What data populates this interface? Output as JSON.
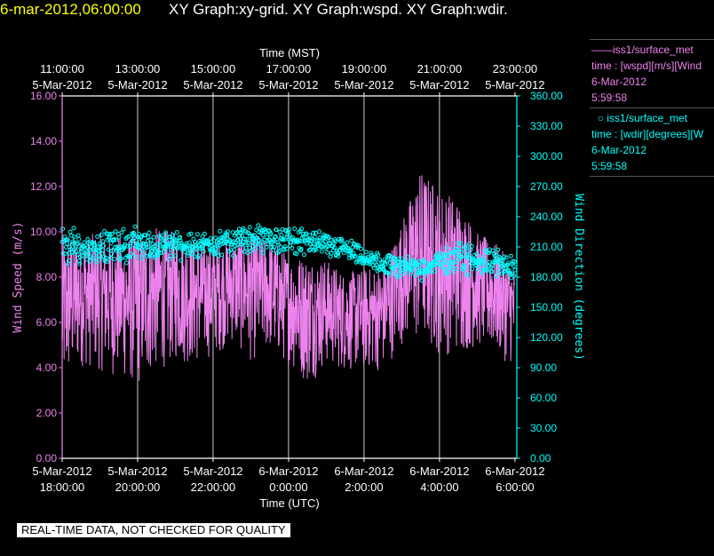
{
  "header": {
    "datetime": "6-mar-2012,06:00:00",
    "titles": "XY Graph:xy-grid.  XY Graph:wspd.  XY Graph:wdir."
  },
  "legend": {
    "series1": {
      "name": "iss1/surface_met",
      "var": "time : [wspd][m/s][Wind",
      "date": "6-Mar-2012",
      "time": "5:59:58"
    },
    "series2": {
      "name": "iss1/surface_met",
      "var": "time : [wdir][degrees][W",
      "date": "6-Mar-2012",
      "time": "5:59:58"
    }
  },
  "warning": "REAL-TIME DATA, NOT CHECKED FOR QUALITY",
  "colors": {
    "wspd": "#ee82ee",
    "wdir": "#00ffff",
    "date_header": "#ffff00",
    "grid": "#ffffff"
  },
  "chart_data": {
    "type": "line",
    "x_top_label": "Time (MST)",
    "x_bottom_label": "Time (UTC)",
    "ylabel_left": "Wind Speed (m/s)",
    "ylabel_right": "Wind Direction (degrees)",
    "xlim_utc_hours": [
      18,
      30.05
    ],
    "ylim_left": [
      0,
      16
    ],
    "ylim_right": [
      0,
      360
    ],
    "top_ticks": [
      {
        "x": 18,
        "time": "11:00:00",
        "date": "5-Mar-2012"
      },
      {
        "x": 20,
        "time": "13:00:00",
        "date": "5-Mar-2012"
      },
      {
        "x": 22,
        "time": "15:00:00",
        "date": "5-Mar-2012"
      },
      {
        "x": 24,
        "time": "17:00:00",
        "date": "5-Mar-2012"
      },
      {
        "x": 26,
        "time": "19:00:00",
        "date": "5-Mar-2012"
      },
      {
        "x": 28,
        "time": "21:00:00",
        "date": "5-Mar-2012"
      },
      {
        "x": 30,
        "time": "23:00:00",
        "date": "5-Mar-2012"
      }
    ],
    "bottom_ticks": [
      {
        "x": 18,
        "date": "5-Mar-2012",
        "time": "18:00:00"
      },
      {
        "x": 20,
        "date": "5-Mar-2012",
        "time": "20:00:00"
      },
      {
        "x": 22,
        "date": "5-Mar-2012",
        "time": "22:00:00"
      },
      {
        "x": 24,
        "date": "6-Mar-2012",
        "time": "0:00:00"
      },
      {
        "x": 26,
        "date": "6-Mar-2012",
        "time": "2:00:00"
      },
      {
        "x": 28,
        "date": "6-Mar-2012",
        "time": "4:00:00"
      },
      {
        "x": 30,
        "date": "6-Mar-2012",
        "time": "6:00:00"
      }
    ],
    "left_ticks": [
      "0.00",
      "2.00",
      "4.00",
      "6.00",
      "8.00",
      "10.00",
      "12.00",
      "14.00",
      "16.00"
    ],
    "right_ticks": [
      "0.00",
      "30.00",
      "60.00",
      "90.00",
      "120.00",
      "150.00",
      "180.00",
      "210.00",
      "240.00",
      "270.00",
      "300.00",
      "330.00",
      "360.00"
    ],
    "series": [
      {
        "name": "iss1/surface_met",
        "variable": "wspd",
        "axis": "left",
        "style": "line",
        "envelope_x": [
          18.0,
          18.2,
          18.5,
          19.0,
          19.5,
          20.0,
          20.5,
          21.0,
          21.5,
          22.0,
          22.5,
          23.0,
          23.5,
          24.0,
          24.5,
          25.0,
          25.5,
          26.0,
          26.5,
          27.0,
          27.5,
          28.0,
          28.5,
          29.0,
          29.5,
          30.0
        ],
        "envelope_min": [
          2.5,
          3.2,
          4.0,
          3.8,
          3.5,
          3.0,
          3.8,
          4.2,
          4.0,
          4.5,
          5.0,
          4.2,
          4.6,
          4.0,
          3.2,
          4.0,
          3.8,
          3.8,
          3.8,
          5.0,
          4.8,
          4.5,
          4.5,
          4.8,
          4.5,
          4.0
        ],
        "envelope_max": [
          9.5,
          10.0,
          9.8,
          10.0,
          9.8,
          10.0,
          10.2,
          10.0,
          9.8,
          9.6,
          9.8,
          10.0,
          9.8,
          9.0,
          9.0,
          8.8,
          8.2,
          8.4,
          8.5,
          10.5,
          12.8,
          12.0,
          11.5,
          10.0,
          9.5,
          8.5
        ]
      },
      {
        "name": "iss1/surface_met",
        "variable": "wdir",
        "axis": "right",
        "style": "scatter",
        "envelope_x": [
          18.0,
          18.5,
          19.0,
          19.5,
          20.0,
          20.5,
          21.0,
          21.5,
          22.0,
          22.5,
          23.0,
          23.5,
          24.0,
          24.5,
          25.0,
          25.5,
          26.0,
          26.5,
          27.0,
          27.5,
          28.0,
          28.5,
          29.0,
          29.5,
          30.0
        ],
        "envelope_min": [
          185,
          190,
          192,
          190,
          193,
          195,
          195,
          197,
          198,
          200,
          203,
          200,
          198,
          200,
          198,
          195,
          185,
          180,
          178,
          175,
          180,
          178,
          180,
          178,
          175
        ],
        "envelope_max": [
          240,
          225,
          228,
          232,
          235,
          225,
          228,
          224,
          228,
          232,
          232,
          236,
          233,
          230,
          224,
          222,
          210,
          205,
          200,
          205,
          210,
          220,
          215,
          210,
          208
        ]
      }
    ]
  }
}
